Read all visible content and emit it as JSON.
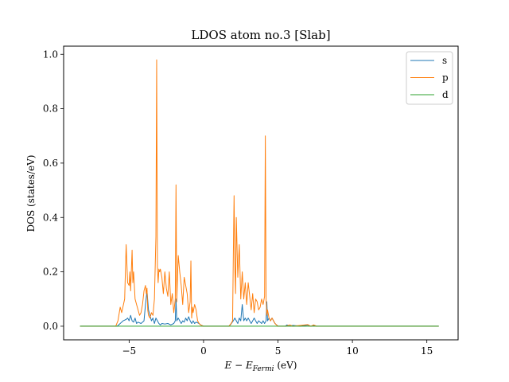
{
  "chart_data": {
    "type": "line",
    "title": "LDOS atom no.3 [Slab]",
    "xlabel": "E − E_Fermi (eV)",
    "xlabel_main": "E − E",
    "xlabel_sub": "Fermi",
    "xlabel_unit": "(eV)",
    "ylabel": "DOS (states/eV)",
    "xlim": [
      -9.4,
      17.1
    ],
    "ylim": [
      -0.05,
      1.03
    ],
    "xticks": [
      -5,
      0,
      5,
      10,
      15
    ],
    "xtick_labels": [
      "−5",
      "0",
      "5",
      "10",
      "15"
    ],
    "yticks": [
      0.0,
      0.2,
      0.4,
      0.6,
      0.8,
      1.0
    ],
    "ytick_labels": [
      "0.0",
      "0.2",
      "0.4",
      "0.6",
      "0.8",
      "1.0"
    ],
    "grid": false,
    "legend_position": "top-right",
    "series": [
      {
        "name": "s",
        "color": "#1f77b4",
        "x": [
          -8.3,
          -5.8,
          -5.6,
          -5.4,
          -5.2,
          -5.1,
          -5.0,
          -4.9,
          -4.8,
          -4.7,
          -4.6,
          -4.5,
          -4.4,
          -4.2,
          -4.0,
          -3.9,
          -3.8,
          -3.7,
          -3.6,
          -3.5,
          -3.4,
          -3.3,
          -3.2,
          -3.1,
          -3.0,
          -2.9,
          -2.8,
          -2.6,
          -2.4,
          -2.2,
          -2.0,
          -1.9,
          -1.85,
          -1.8,
          -1.7,
          -1.6,
          -1.5,
          -1.4,
          -1.3,
          -1.2,
          -1.1,
          -1.0,
          -0.9,
          -0.8,
          -0.7,
          -0.6,
          -0.5,
          -0.3,
          -0.2,
          0.0,
          1.7,
          1.8,
          2.0,
          2.1,
          2.2,
          2.3,
          2.4,
          2.5,
          2.6,
          2.7,
          2.8,
          2.9,
          3.0,
          3.1,
          3.2,
          3.3,
          3.4,
          3.5,
          3.6,
          3.7,
          3.8,
          3.9,
          4.0,
          4.1,
          4.2,
          4.25,
          4.3,
          4.4,
          4.5,
          4.6,
          4.7,
          4.8,
          5.0,
          5.5,
          5.6,
          5.8,
          6.0,
          6.5,
          7.0,
          7.2,
          7.4,
          7.6,
          8.0,
          10.0,
          15.8
        ],
        "y": [
          0.0,
          0.0,
          0.01,
          0.02,
          0.025,
          0.03,
          0.02,
          0.04,
          0.02,
          0.015,
          0.03,
          0.01,
          0.015,
          0.01,
          0.02,
          0.08,
          0.13,
          0.06,
          0.04,
          0.02,
          0.03,
          0.01,
          0.03,
          0.02,
          0.01,
          0.005,
          0.01,
          0.008,
          0.01,
          0.005,
          0.01,
          0.02,
          0.1,
          0.02,
          0.03,
          0.02,
          0.01,
          0.02,
          0.015,
          0.03,
          0.02,
          0.035,
          0.02,
          0.01,
          0.02,
          0.01,
          0.015,
          0.01,
          0.005,
          0.0,
          0.0,
          0.005,
          0.02,
          0.03,
          0.02,
          0.01,
          0.03,
          0.02,
          0.08,
          0.02,
          0.03,
          0.02,
          0.03,
          0.02,
          0.01,
          0.02,
          0.03,
          0.02,
          0.01,
          0.02,
          0.015,
          0.01,
          0.02,
          0.01,
          0.02,
          0.09,
          0.02,
          0.03,
          0.02,
          0.03,
          0.02,
          0.01,
          0.0,
          0.0,
          0.005,
          0.0,
          0.003,
          0.0,
          0.004,
          0.0,
          0.003,
          0.0,
          0.0,
          0.0,
          0.0
        ]
      },
      {
        "name": "p",
        "color": "#ff7f0e",
        "x": [
          -8.3,
          -5.9,
          -5.75,
          -5.6,
          -5.5,
          -5.3,
          -5.2,
          -5.1,
          -5.0,
          -4.95,
          -4.9,
          -4.8,
          -4.75,
          -4.7,
          -4.6,
          -4.5,
          -4.4,
          -4.3,
          -4.2,
          -4.1,
          -4.0,
          -3.9,
          -3.85,
          -3.8,
          -3.75,
          -3.7,
          -3.6,
          -3.5,
          -3.4,
          -3.3,
          -3.2,
          -3.15,
          -3.1,
          -3.05,
          -3.0,
          -2.95,
          -2.9,
          -2.8,
          -2.7,
          -2.6,
          -2.5,
          -2.4,
          -2.3,
          -2.2,
          -2.1,
          -2.0,
          -1.9,
          -1.85,
          -1.8,
          -1.75,
          -1.7,
          -1.6,
          -1.5,
          -1.4,
          -1.3,
          -1.2,
          -1.1,
          -1.0,
          -0.9,
          -0.85,
          -0.8,
          -0.75,
          -0.7,
          -0.6,
          -0.5,
          -0.4,
          -0.3,
          -0.2,
          0.0,
          1.7,
          1.85,
          1.95,
          2.0,
          2.05,
          2.1,
          2.15,
          2.2,
          2.3,
          2.4,
          2.5,
          2.6,
          2.7,
          2.8,
          2.9,
          3.0,
          3.1,
          3.2,
          3.3,
          3.4,
          3.5,
          3.6,
          3.7,
          3.8,
          3.9,
          4.0,
          4.1,
          4.15,
          4.2,
          4.25,
          4.3,
          4.4,
          4.5,
          4.6,
          4.7,
          4.8,
          4.9,
          5.0,
          5.5,
          5.8,
          6.0,
          6.5,
          7.0,
          7.2,
          7.4,
          7.6,
          8.0,
          10.0,
          15.8
        ],
        "y": [
          0.0,
          0.0,
          0.02,
          0.07,
          0.05,
          0.1,
          0.3,
          0.16,
          0.15,
          0.2,
          0.13,
          0.28,
          0.16,
          0.2,
          0.1,
          0.08,
          0.06,
          0.04,
          0.05,
          0.08,
          0.13,
          0.15,
          0.12,
          0.14,
          0.06,
          0.04,
          0.03,
          0.05,
          0.04,
          0.1,
          0.33,
          0.98,
          0.22,
          0.16,
          0.21,
          0.2,
          0.21,
          0.18,
          0.12,
          0.2,
          0.14,
          0.11,
          0.2,
          0.08,
          0.12,
          0.05,
          0.1,
          0.52,
          0.09,
          0.18,
          0.26,
          0.2,
          0.15,
          0.08,
          0.18,
          0.15,
          0.12,
          0.05,
          0.09,
          0.24,
          0.03,
          0.07,
          0.05,
          0.08,
          0.06,
          0.02,
          0.01,
          0.005,
          0.0,
          0.0,
          0.01,
          0.02,
          0.26,
          0.48,
          0.22,
          0.12,
          0.4,
          0.18,
          0.3,
          0.1,
          0.2,
          0.1,
          0.16,
          0.08,
          0.16,
          0.11,
          0.06,
          0.12,
          0.05,
          0.1,
          0.09,
          0.06,
          0.07,
          0.1,
          0.08,
          0.11,
          0.7,
          0.1,
          0.04,
          0.06,
          0.03,
          0.02,
          0.03,
          0.02,
          0.01,
          0.005,
          0.0,
          0.0,
          0.005,
          0.0,
          0.003,
          0.006,
          0.0,
          0.005,
          0.0,
          0.0,
          0.0,
          0.0
        ]
      },
      {
        "name": "d",
        "color": "#2ca02c",
        "x": [
          -8.3,
          15.8
        ],
        "y": [
          0.0,
          0.0
        ]
      }
    ]
  }
}
